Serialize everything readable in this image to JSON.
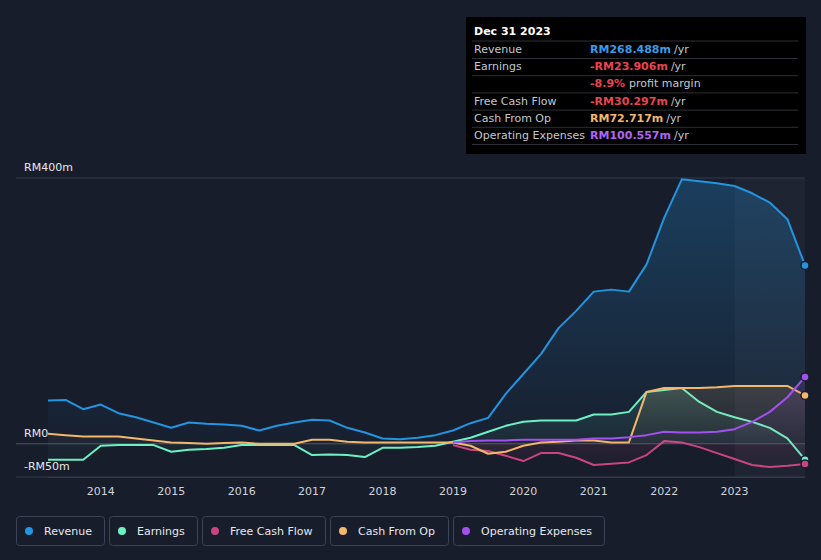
{
  "chart_data": {
    "type": "line",
    "x": [
      2013.25,
      2013.5,
      2013.75,
      2014,
      2014.25,
      2014.5,
      2014.75,
      2015,
      2015.25,
      2015.5,
      2015.75,
      2016,
      2016.25,
      2016.5,
      2016.75,
      2017,
      2017.25,
      2017.5,
      2017.75,
      2018,
      2018.25,
      2018.5,
      2018.75,
      2019,
      2019.25,
      2019.5,
      2019.75,
      2020,
      2020.25,
      2020.5,
      2020.75,
      2021,
      2021.25,
      2021.5,
      2021.75,
      2022,
      2022.25,
      2022.5,
      2022.75,
      2023,
      2023.25,
      2023.5,
      2023.75,
      2024
    ],
    "xlim": [
      2013.25,
      2024
    ],
    "xticks": [
      2014,
      2015,
      2016,
      2017,
      2018,
      2019,
      2020,
      2021,
      2022,
      2023
    ],
    "ylim": [
      -50,
      400
    ],
    "yticks": [
      {
        "value": -50,
        "label": "-RM50m"
      },
      {
        "value": 0,
        "label": "RM0"
      },
      {
        "value": 400,
        "label": "RM400m"
      }
    ],
    "grid": true,
    "legend": "bottom",
    "series": [
      {
        "name": "Revenue",
        "color": "#2394df",
        "values": [
          65,
          66,
          52,
          59,
          46,
          40,
          32,
          24,
          32,
          30,
          29,
          27,
          20,
          27,
          32,
          36,
          35,
          24,
          17,
          8,
          7,
          9,
          13,
          20,
          31,
          39,
          75,
          105,
          135,
          174,
          200,
          229,
          232,
          229,
          270,
          340,
          398,
          395,
          392,
          388,
          377,
          363,
          338,
          268.488
        ]
      },
      {
        "name": "Earnings",
        "color": "#6cf0c4",
        "values": [
          -24,
          -24,
          -24,
          -3,
          -2,
          -2,
          -2,
          -12,
          -9,
          -8,
          -6,
          -2,
          -2,
          -2,
          -2,
          -17,
          -16,
          -17,
          -20,
          -6,
          -6,
          -5,
          -3,
          3,
          9,
          18,
          27,
          33,
          35,
          35,
          35,
          44,
          44,
          48,
          78,
          81,
          84,
          63,
          48,
          40,
          33,
          24,
          8,
          -23.906
        ]
      },
      {
        "name": "Free Cash Flow",
        "color": "#c8457f",
        "values": [
          null,
          null,
          null,
          null,
          null,
          null,
          null,
          null,
          null,
          null,
          null,
          null,
          null,
          null,
          null,
          null,
          null,
          null,
          null,
          null,
          null,
          null,
          null,
          -2,
          -9,
          -11,
          -18,
          -26,
          -14,
          -14,
          -21,
          -32,
          -30,
          -28,
          -17,
          4,
          2,
          -5,
          -14,
          -23,
          -32,
          -35,
          -33,
          -30.297
        ]
      },
      {
        "name": "Cash From Op",
        "color": "#f2b66c",
        "values": [
          15,
          13,
          11,
          11,
          11,
          8,
          5,
          2,
          1,
          0,
          1,
          2,
          0,
          0,
          0,
          6,
          6,
          3,
          2,
          2,
          2,
          2,
          2,
          2,
          -3,
          -15,
          -12,
          -3,
          2,
          3,
          5,
          5,
          2,
          2,
          78,
          84,
          84,
          84,
          85,
          87,
          87,
          87,
          87,
          72.717
        ]
      },
      {
        "name": "Operating Expenses",
        "color": "#a450f0",
        "values": [
          null,
          null,
          null,
          null,
          null,
          null,
          null,
          null,
          null,
          null,
          null,
          null,
          null,
          null,
          null,
          null,
          null,
          null,
          null,
          null,
          null,
          null,
          null,
          2,
          4,
          5,
          5,
          6,
          6,
          6,
          6,
          8,
          8,
          10,
          13,
          18,
          17,
          17,
          18,
          22,
          33,
          48,
          70,
          100.557
        ]
      }
    ],
    "tooltip": {
      "date": "Dec 31 2023",
      "rows": [
        {
          "label": "Revenue",
          "value": "RM268.488m",
          "unit": "/yr",
          "color": "#3a9be8"
        },
        {
          "label": "Earnings",
          "value": "-RM23.906m",
          "unit": "/yr",
          "color": "#e8454f"
        },
        {
          "label": "Free Cash Flow",
          "value": "-RM30.297m",
          "unit": "/yr",
          "color": "#e8454f"
        },
        {
          "label": "Cash From Op",
          "value": "RM72.717m",
          "unit": "/yr",
          "color": "#f2b66c"
        },
        {
          "label": "Operating Expenses",
          "value": "RM100.557m",
          "unit": "/yr",
          "color": "#b065f5"
        }
      ],
      "profit_margin": {
        "value": "-8.9%",
        "label": "profit margin",
        "color": "#e8454f"
      }
    }
  }
}
